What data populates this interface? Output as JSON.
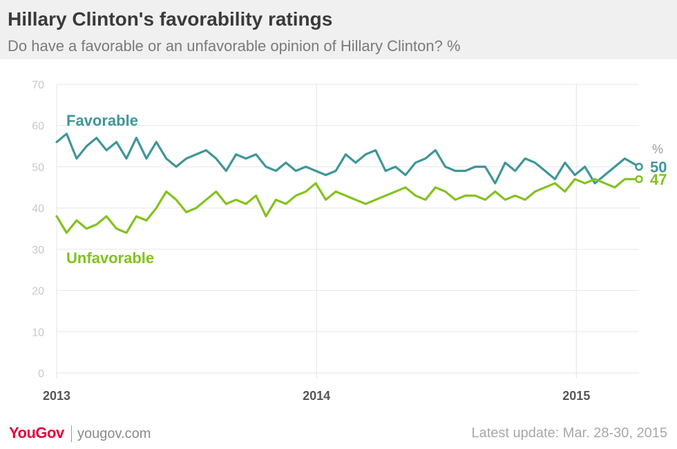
{
  "header": {
    "title": "Hillary Clinton's favorability ratings",
    "subtitle": "Do have a favorable or an unfavorable opinion of Hillary Clinton? %"
  },
  "footer": {
    "logo": "YouGov",
    "url": "yougov.com",
    "update": "Latest update: Mar. 28-30,  2015"
  },
  "colors": {
    "favorable": "#3f9697",
    "unfavorable": "#82c21c",
    "grid": "#e6e6e6",
    "axis_text": "#c8c8c8",
    "year_text": "#555555"
  },
  "chart_data": {
    "type": "line",
    "unit_label": "%",
    "ylim": [
      0,
      70
    ],
    "yticks": [
      0,
      10,
      20,
      30,
      40,
      50,
      60,
      70
    ],
    "xlim": [
      "2013-01-01",
      "2015-03-30"
    ],
    "x_tick_labels": [
      "2013",
      "2014",
      "2015"
    ],
    "x_ticks": [
      "2013-01-01",
      "2014-01-01",
      "2015-01-01"
    ],
    "grid": true,
    "series": [
      {
        "name": "Favorable",
        "key": "favorable",
        "end_label": "50",
        "x": [
          "2013-01-01",
          "2013-01-15",
          "2013-01-29",
          "2013-02-12",
          "2013-02-26",
          "2013-03-12",
          "2013-03-26",
          "2013-04-09",
          "2013-04-23",
          "2013-05-07",
          "2013-05-21",
          "2013-06-04",
          "2013-06-18",
          "2013-07-02",
          "2013-07-16",
          "2013-07-30",
          "2013-08-13",
          "2013-08-27",
          "2013-09-10",
          "2013-09-24",
          "2013-10-08",
          "2013-10-22",
          "2013-11-05",
          "2013-11-19",
          "2013-12-03",
          "2013-12-17",
          "2013-12-31",
          "2014-01-14",
          "2014-01-28",
          "2014-02-11",
          "2014-02-25",
          "2014-03-11",
          "2014-03-25",
          "2014-04-08",
          "2014-04-22",
          "2014-05-06",
          "2014-05-20",
          "2014-06-03",
          "2014-06-17",
          "2014-07-01",
          "2014-07-15",
          "2014-07-29",
          "2014-08-12",
          "2014-08-26",
          "2014-09-09",
          "2014-09-23",
          "2014-10-07",
          "2014-10-21",
          "2014-11-04",
          "2014-11-18",
          "2014-12-02",
          "2014-12-16",
          "2014-12-30",
          "2015-01-13",
          "2015-01-27",
          "2015-02-10",
          "2015-02-24",
          "2015-03-10",
          "2015-03-30"
        ],
        "values": [
          56,
          58,
          52,
          55,
          57,
          54,
          56,
          52,
          57,
          52,
          56,
          52,
          50,
          52,
          53,
          54,
          52,
          49,
          53,
          52,
          53,
          50,
          49,
          51,
          49,
          50,
          49,
          48,
          49,
          53,
          51,
          53,
          54,
          49,
          50,
          48,
          51,
          52,
          54,
          50,
          49,
          49,
          50,
          50,
          46,
          51,
          49,
          52,
          51,
          49,
          47,
          51,
          48,
          50,
          46,
          48,
          50,
          52,
          50
        ]
      },
      {
        "name": "Unfavorable",
        "key": "unfavorable",
        "end_label": "47",
        "x": [
          "2013-01-01",
          "2013-01-15",
          "2013-01-29",
          "2013-02-12",
          "2013-02-26",
          "2013-03-12",
          "2013-03-26",
          "2013-04-09",
          "2013-04-23",
          "2013-05-07",
          "2013-05-21",
          "2013-06-04",
          "2013-06-18",
          "2013-07-02",
          "2013-07-16",
          "2013-07-30",
          "2013-08-13",
          "2013-08-27",
          "2013-09-10",
          "2013-09-24",
          "2013-10-08",
          "2013-10-22",
          "2013-11-05",
          "2013-11-19",
          "2013-12-03",
          "2013-12-17",
          "2013-12-31",
          "2014-01-14",
          "2014-01-28",
          "2014-02-11",
          "2014-02-25",
          "2014-03-11",
          "2014-03-25",
          "2014-04-08",
          "2014-04-22",
          "2014-05-06",
          "2014-05-20",
          "2014-06-03",
          "2014-06-17",
          "2014-07-01",
          "2014-07-15",
          "2014-07-29",
          "2014-08-12",
          "2014-08-26",
          "2014-09-09",
          "2014-09-23",
          "2014-10-07",
          "2014-10-21",
          "2014-11-04",
          "2014-11-18",
          "2014-12-02",
          "2014-12-16",
          "2014-12-30",
          "2015-01-13",
          "2015-01-27",
          "2015-02-10",
          "2015-02-24",
          "2015-03-10",
          "2015-03-30"
        ],
        "values": [
          38,
          34,
          37,
          35,
          36,
          38,
          35,
          34,
          38,
          37,
          40,
          44,
          42,
          39,
          40,
          42,
          44,
          41,
          42,
          41,
          43,
          38,
          42,
          41,
          43,
          44,
          46,
          42,
          44,
          43,
          42,
          41,
          42,
          43,
          44,
          45,
          43,
          42,
          45,
          44,
          42,
          43,
          43,
          42,
          44,
          42,
          43,
          42,
          44,
          45,
          46,
          44,
          47,
          46,
          47,
          46,
          45,
          47,
          47
        ]
      }
    ]
  }
}
